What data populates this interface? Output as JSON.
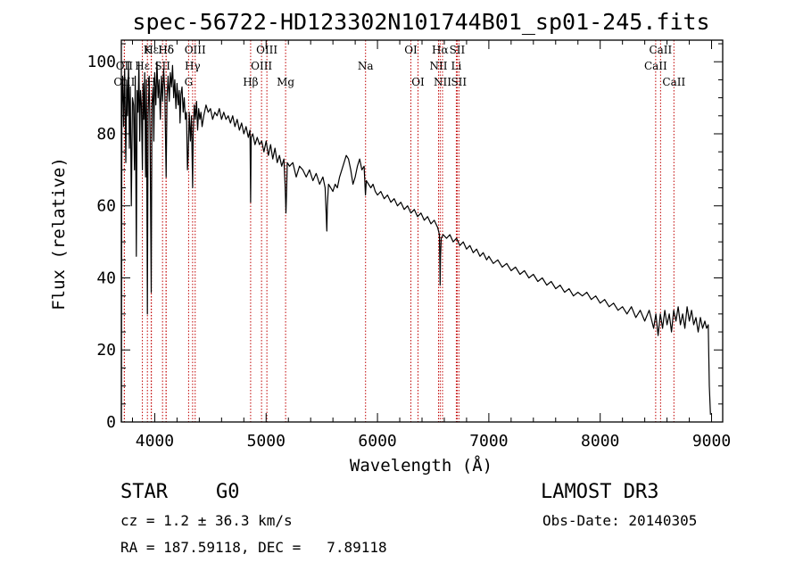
{
  "chart_data": {
    "type": "line",
    "title": "spec-56722-HD123302N101744B01_sp01-245.fits",
    "xlabel": "Wavelength (Å)",
    "ylabel": "Flux (relative)",
    "xlim": [
      3700,
      9100
    ],
    "ylim": [
      0,
      106
    ],
    "xticks": [
      4000,
      5000,
      6000,
      7000,
      8000,
      9000
    ],
    "yticks": [
      0,
      20,
      40,
      60,
      80,
      100
    ],
    "series": [
      {
        "name": "flux",
        "points": [
          [
            3700,
            0
          ],
          [
            3705,
            88
          ],
          [
            3712,
            96
          ],
          [
            3720,
            82
          ],
          [
            3730,
            98
          ],
          [
            3740,
            72
          ],
          [
            3748,
            95
          ],
          [
            3755,
            85
          ],
          [
            3765,
            100
          ],
          [
            3772,
            76
          ],
          [
            3780,
            93
          ],
          [
            3790,
            60
          ],
          [
            3800,
            90
          ],
          [
            3810,
            88
          ],
          [
            3818,
            70
          ],
          [
            3825,
            96
          ],
          [
            3835,
            46
          ],
          [
            3842,
            92
          ],
          [
            3850,
            86
          ],
          [
            3858,
            100
          ],
          [
            3865,
            78
          ],
          [
            3872,
            92
          ],
          [
            3880,
            88
          ],
          [
            3889,
            70
          ],
          [
            3895,
            94
          ],
          [
            3902,
            84
          ],
          [
            3910,
            97
          ],
          [
            3918,
            68
          ],
          [
            3925,
            95
          ],
          [
            3934,
            30
          ],
          [
            3940,
            85
          ],
          [
            3950,
            96
          ],
          [
            3958,
            80
          ],
          [
            3968,
            36
          ],
          [
            3975,
            88
          ],
          [
            3985,
            93
          ],
          [
            3992,
            78
          ],
          [
            4000,
            97
          ],
          [
            4010,
            88
          ],
          [
            4020,
            100
          ],
          [
            4030,
            90
          ],
          [
            4040,
            95
          ],
          [
            4050,
            84
          ],
          [
            4060,
            96
          ],
          [
            4070,
            89
          ],
          [
            4080,
            98
          ],
          [
            4090,
            92
          ],
          [
            4102,
            68
          ],
          [
            4110,
            90
          ],
          [
            4120,
            96
          ],
          [
            4130,
            89
          ],
          [
            4140,
            97
          ],
          [
            4150,
            93
          ],
          [
            4160,
            99
          ],
          [
            4170,
            90
          ],
          [
            4180,
            95
          ],
          [
            4190,
            87
          ],
          [
            4200,
            94
          ],
          [
            4210,
            88
          ],
          [
            4220,
            92
          ],
          [
            4227,
            83
          ],
          [
            4235,
            91
          ],
          [
            4245,
            93
          ],
          [
            4255,
            86
          ],
          [
            4265,
            90
          ],
          [
            4275,
            84
          ],
          [
            4285,
            86
          ],
          [
            4294,
            70
          ],
          [
            4300,
            74
          ],
          [
            4310,
            86
          ],
          [
            4320,
            78
          ],
          [
            4330,
            85
          ],
          [
            4340,
            65
          ],
          [
            4345,
            80
          ],
          [
            4355,
            88
          ],
          [
            4365,
            84
          ],
          [
            4375,
            89
          ],
          [
            4385,
            81
          ],
          [
            4395,
            87
          ],
          [
            4405,
            84
          ],
          [
            4415,
            86
          ],
          [
            4425,
            82
          ],
          [
            4440,
            85
          ],
          [
            4460,
            88
          ],
          [
            4480,
            86
          ],
          [
            4500,
            87
          ],
          [
            4520,
            84
          ],
          [
            4540,
            86
          ],
          [
            4560,
            85
          ],
          [
            4580,
            87
          ],
          [
            4600,
            84
          ],
          [
            4620,
            86
          ],
          [
            4640,
            84
          ],
          [
            4660,
            85
          ],
          [
            4680,
            83
          ],
          [
            4700,
            85
          ],
          [
            4720,
            82
          ],
          [
            4740,
            84
          ],
          [
            4760,
            81
          ],
          [
            4780,
            83
          ],
          [
            4800,
            80
          ],
          [
            4820,
            82
          ],
          [
            4840,
            79
          ],
          [
            4855,
            81
          ],
          [
            4861,
            61
          ],
          [
            4866,
            79
          ],
          [
            4880,
            80
          ],
          [
            4900,
            77
          ],
          [
            4920,
            79
          ],
          [
            4940,
            77
          ],
          [
            4960,
            78
          ],
          [
            4980,
            75
          ],
          [
            5000,
            78
          ],
          [
            5020,
            74
          ],
          [
            5040,
            77
          ],
          [
            5060,
            73
          ],
          [
            5080,
            76
          ],
          [
            5100,
            72
          ],
          [
            5120,
            74
          ],
          [
            5140,
            71
          ],
          [
            5160,
            73
          ],
          [
            5170,
            66
          ],
          [
            5178,
            58
          ],
          [
            5183,
            63
          ],
          [
            5190,
            72
          ],
          [
            5210,
            71
          ],
          [
            5240,
            72
          ],
          [
            5270,
            68
          ],
          [
            5300,
            71
          ],
          [
            5330,
            70
          ],
          [
            5360,
            68
          ],
          [
            5390,
            70
          ],
          [
            5420,
            67
          ],
          [
            5450,
            69
          ],
          [
            5480,
            66
          ],
          [
            5510,
            68
          ],
          [
            5530,
            65
          ],
          [
            5540,
            57
          ],
          [
            5545,
            53
          ],
          [
            5550,
            60
          ],
          [
            5560,
            66
          ],
          [
            5580,
            65
          ],
          [
            5600,
            64
          ],
          [
            5620,
            66
          ],
          [
            5640,
            65
          ],
          [
            5660,
            68
          ],
          [
            5680,
            70
          ],
          [
            5700,
            72
          ],
          [
            5720,
            74
          ],
          [
            5740,
            73
          ],
          [
            5760,
            70
          ],
          [
            5780,
            66
          ],
          [
            5800,
            68
          ],
          [
            5820,
            71
          ],
          [
            5840,
            73
          ],
          [
            5860,
            70
          ],
          [
            5880,
            71
          ],
          [
            5892,
            63
          ],
          [
            5900,
            67
          ],
          [
            5920,
            66
          ],
          [
            5940,
            65
          ],
          [
            5960,
            66
          ],
          [
            5980,
            64
          ],
          [
            6000,
            63
          ],
          [
            6030,
            64
          ],
          [
            6060,
            62
          ],
          [
            6090,
            63
          ],
          [
            6120,
            61
          ],
          [
            6150,
            62
          ],
          [
            6180,
            60
          ],
          [
            6210,
            61
          ],
          [
            6240,
            59
          ],
          [
            6270,
            60
          ],
          [
            6300,
            58
          ],
          [
            6330,
            59
          ],
          [
            6360,
            57
          ],
          [
            6390,
            58
          ],
          [
            6420,
            56
          ],
          [
            6450,
            57
          ],
          [
            6480,
            55
          ],
          [
            6510,
            56
          ],
          [
            6540,
            54
          ],
          [
            6556,
            52
          ],
          [
            6560,
            44
          ],
          [
            6563,
            38
          ],
          [
            6566,
            46
          ],
          [
            6572,
            51
          ],
          [
            6590,
            52
          ],
          [
            6620,
            51
          ],
          [
            6650,
            52
          ],
          [
            6680,
            50
          ],
          [
            6710,
            51
          ],
          [
            6740,
            49
          ],
          [
            6770,
            50
          ],
          [
            6800,
            48
          ],
          [
            6830,
            49
          ],
          [
            6860,
            47
          ],
          [
            6890,
            48
          ],
          [
            6920,
            46
          ],
          [
            6950,
            47
          ],
          [
            6980,
            45
          ],
          [
            7000,
            46
          ],
          [
            7040,
            44
          ],
          [
            7080,
            45
          ],
          [
            7120,
            43
          ],
          [
            7160,
            44
          ],
          [
            7200,
            42
          ],
          [
            7240,
            43
          ],
          [
            7280,
            41
          ],
          [
            7320,
            42
          ],
          [
            7360,
            40
          ],
          [
            7400,
            41
          ],
          [
            7440,
            39
          ],
          [
            7480,
            40
          ],
          [
            7520,
            38
          ],
          [
            7560,
            39
          ],
          [
            7600,
            37
          ],
          [
            7640,
            38
          ],
          [
            7680,
            36
          ],
          [
            7720,
            37
          ],
          [
            7760,
            35
          ],
          [
            7800,
            36
          ],
          [
            7840,
            35
          ],
          [
            7880,
            36
          ],
          [
            7920,
            34
          ],
          [
            7960,
            35
          ],
          [
            8000,
            33
          ],
          [
            8040,
            34
          ],
          [
            8080,
            32
          ],
          [
            8120,
            33
          ],
          [
            8160,
            31
          ],
          [
            8200,
            32
          ],
          [
            8240,
            30
          ],
          [
            8280,
            32
          ],
          [
            8320,
            29
          ],
          [
            8360,
            31
          ],
          [
            8400,
            28
          ],
          [
            8440,
            31
          ],
          [
            8480,
            26
          ],
          [
            8500,
            30
          ],
          [
            8520,
            24
          ],
          [
            8540,
            30
          ],
          [
            8560,
            26
          ],
          [
            8580,
            31
          ],
          [
            8600,
            27
          ],
          [
            8620,
            30
          ],
          [
            8640,
            25
          ],
          [
            8660,
            31
          ],
          [
            8680,
            28
          ],
          [
            8700,
            32
          ],
          [
            8720,
            27
          ],
          [
            8740,
            30
          ],
          [
            8760,
            26
          ],
          [
            8780,
            32
          ],
          [
            8800,
            28
          ],
          [
            8820,
            31
          ],
          [
            8840,
            27
          ],
          [
            8860,
            29
          ],
          [
            8880,
            25
          ],
          [
            8900,
            29
          ],
          [
            8920,
            26
          ],
          [
            8940,
            28
          ],
          [
            8955,
            26
          ],
          [
            8970,
            27
          ],
          [
            8980,
            10
          ],
          [
            8990,
            2
          ]
        ]
      }
    ],
    "spectral_lines": [
      {
        "label": "Hδ",
        "x": 4102,
        "row": 0
      },
      {
        "label": "K",
        "x": 3934,
        "row": 0
      },
      {
        "label": "Hε",
        "x": 3970,
        "row": 0
      },
      {
        "label": "Hδ",
        "x": 4102,
        "row": 0
      },
      {
        "label": "OII",
        "x": 3727,
        "row": 1
      },
      {
        "label": "Hε",
        "x": 3889,
        "row": 1
      },
      {
        "label": "SII",
        "x": 4070,
        "row": 1
      },
      {
        "label": "OIII",
        "x": 3727,
        "row": 2
      },
      {
        "label": "H",
        "x": 3968,
        "row": 2
      },
      {
        "label": "OIII",
        "x": 4363,
        "row": 0
      },
      {
        "label": "Hγ",
        "x": 4340,
        "row": 1
      },
      {
        "label": "G",
        "x": 4304,
        "row": 2
      },
      {
        "label": "Hβ",
        "x": 4861,
        "row": 2
      },
      {
        "label": "OIII",
        "x": 5007,
        "row": 0
      },
      {
        "label": "OIII",
        "x": 4959,
        "row": 1
      },
      {
        "label": "Mg",
        "x": 5175,
        "row": 2
      },
      {
        "label": "Na",
        "x": 5893,
        "row": 1
      },
      {
        "label": "OI",
        "x": 6300,
        "row": 0
      },
      {
        "label": "OI",
        "x": 6364,
        "row": 2
      },
      {
        "label": "Hα",
        "x": 6563,
        "row": 0
      },
      {
        "label": "SII",
        "x": 6716,
        "row": 0
      },
      {
        "label": "NII",
        "x": 6548,
        "row": 1
      },
      {
        "label": "Li",
        "x": 6708,
        "row": 1
      },
      {
        "label": "NII",
        "x": 6584,
        "row": 2
      },
      {
        "label": "SII",
        "x": 6731,
        "row": 2
      },
      {
        "label": "CaII",
        "x": 8542,
        "row": 0
      },
      {
        "label": "CaII",
        "x": 8498,
        "row": 1
      },
      {
        "label": "CaII",
        "x": 8662,
        "row": 2
      }
    ],
    "line_marker_color": "#c00000"
  },
  "footer": {
    "object_class": "STAR",
    "subclass": "G0",
    "survey": "LAMOST DR3",
    "redshift": "cz = 1.2 ± 36.3 km/s",
    "obs_date": "Obs-Date: 20140305",
    "coords": "RA = 187.59118, DEC =   7.89118"
  }
}
